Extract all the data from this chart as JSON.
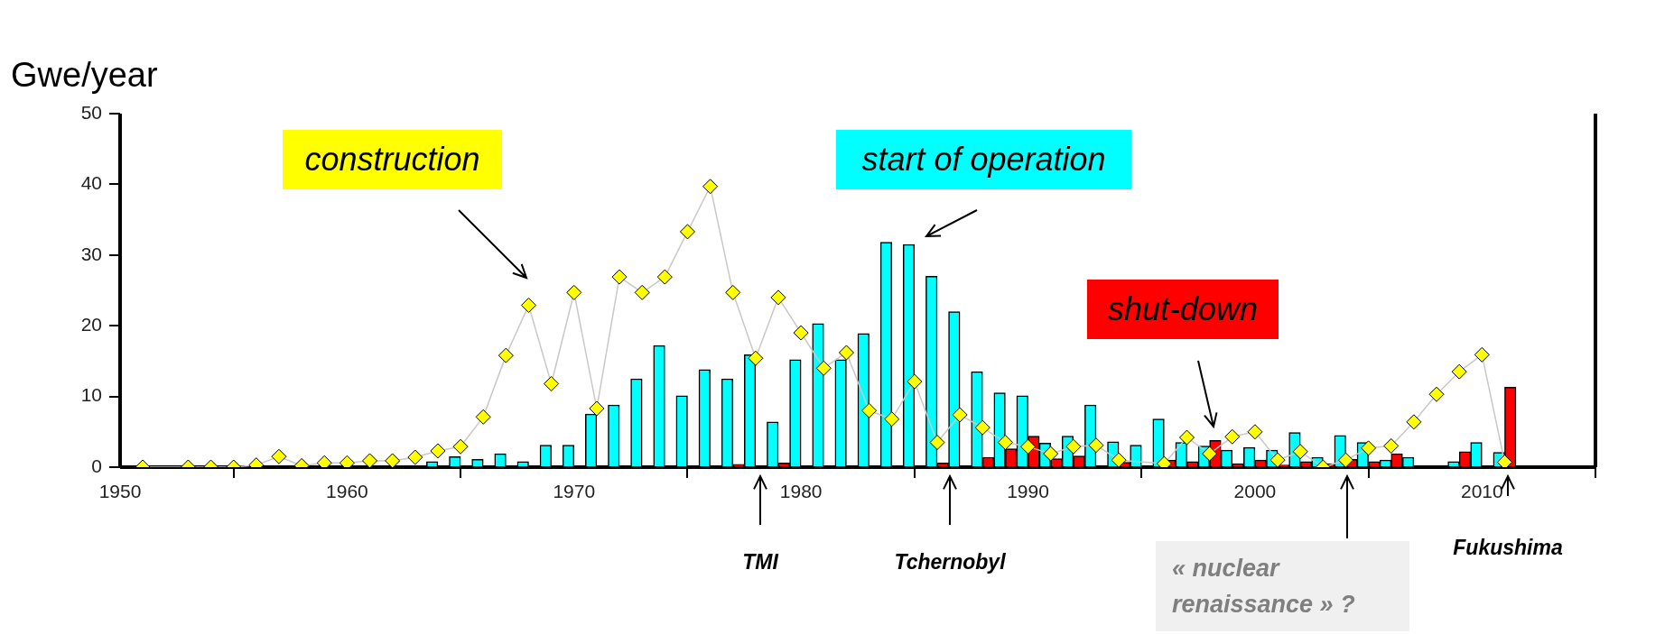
{
  "chart_data": {
    "type": "bar",
    "ylabel": "Gwe/year",
    "xlim": [
      1950,
      2015
    ],
    "xticks": [
      1950,
      1960,
      1970,
      1980,
      1990,
      2000,
      2010
    ],
    "ylim": [
      0,
      50
    ],
    "yticks": [
      0,
      10,
      20,
      30,
      40,
      50
    ],
    "marker": "diamond",
    "grid": false,
    "legend": false,
    "x": [
      1951,
      1952,
      1953,
      1954,
      1955,
      1956,
      1957,
      1958,
      1959,
      1960,
      1961,
      1962,
      1963,
      1964,
      1965,
      1966,
      1967,
      1968,
      1969,
      1970,
      1971,
      1972,
      1973,
      1974,
      1975,
      1976,
      1977,
      1978,
      1979,
      1980,
      1981,
      1982,
      1983,
      1984,
      1985,
      1986,
      1987,
      1988,
      1989,
      1990,
      1991,
      1992,
      1993,
      1994,
      1995,
      1996,
      1997,
      1998,
      1999,
      2000,
      2001,
      2002,
      2003,
      2004,
      2005,
      2006,
      2007,
      2008,
      2009,
      2010,
      2011
    ],
    "series": [
      {
        "name": "construction",
        "type": "line",
        "color": "#ffff00",
        "values": [
          0,
          null,
          0,
          0,
          0,
          0.3,
          1.5,
          0.2,
          0.6,
          0.6,
          0.9,
          0.9,
          1.4,
          2.3,
          2.9,
          7.1,
          15.8,
          22.9,
          11.8,
          24.7,
          8.3,
          26.9,
          24.7,
          26.9,
          33.3,
          39.7,
          24.7,
          15.4,
          24.0,
          19.0,
          14.0,
          16.2,
          8.0,
          6.8,
          12.1,
          3.5,
          7.4,
          5.6,
          3.5,
          2.9,
          1.9,
          2.9,
          3.1,
          1.0,
          null,
          0.5,
          4.2,
          1.9,
          4.3,
          5.0,
          1.0,
          2.2,
          0,
          1.0,
          2.7,
          3.0,
          6.4,
          10.3,
          13.5,
          15.9,
          0.7
        ]
      },
      {
        "name": "start of operation",
        "color": "#00ffff",
        "values": [
          null,
          null,
          null,
          null,
          null,
          null,
          null,
          null,
          null,
          null,
          null,
          null,
          null,
          0.8,
          1.5,
          1.1,
          1.9,
          0.8,
          3.1,
          3.1,
          7.5,
          8.8,
          12.5,
          17.2,
          10.1,
          13.8,
          12.5,
          15.9,
          6.4,
          15.2,
          20.3,
          15.2,
          18.9,
          31.8,
          31.5,
          27.0,
          22.0,
          13.5,
          10.5,
          10.1,
          3.4,
          4.4,
          8.8,
          3.6,
          3.1,
          6.8,
          3.5,
          3.0,
          2.4,
          2.8,
          2.4,
          4.9,
          1.4,
          4.5,
          3.5,
          1.0,
          1.4,
          null,
          0.8,
          3.5,
          2.1
        ]
      },
      {
        "name": "shut-down",
        "color": "#ff0000",
        "values": [
          null,
          null,
          null,
          null,
          null,
          null,
          null,
          null,
          null,
          null,
          null,
          null,
          null,
          null,
          null,
          null,
          null,
          null,
          null,
          null,
          null,
          null,
          null,
          null,
          null,
          null,
          0.4,
          null,
          0.6,
          null,
          null,
          null,
          null,
          null,
          null,
          0.6,
          null,
          1.4,
          2.6,
          4.4,
          1.2,
          1.6,
          null,
          0.7,
          null,
          1.0,
          0.8,
          3.8,
          0.5,
          1.0,
          0.3,
          0.8,
          0.5,
          1.1,
          0.8,
          1.9,
          null,
          null,
          2.2,
          null,
          11.3
        ]
      }
    ],
    "annotations": [
      "TMI",
      "Tchernobyl",
      "« nuclear renaissance » ?",
      "Fukushima"
    ]
  }
}
